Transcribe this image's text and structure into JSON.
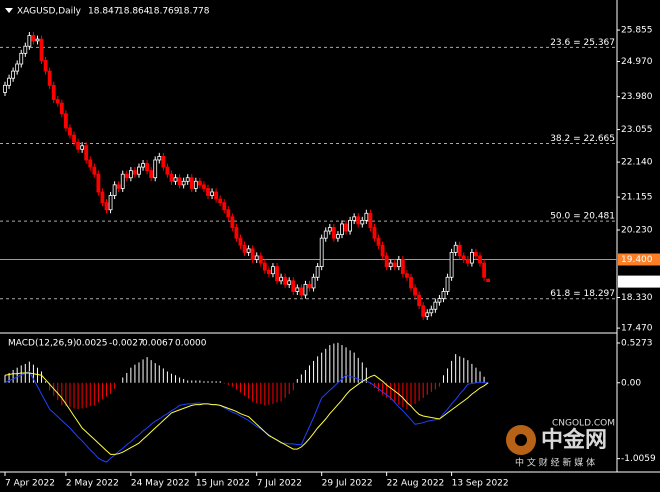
{
  "chart_data": [
    {
      "type": "candlestick",
      "symbol": "XAGUSD,Daily",
      "up_color": "#ffffff",
      "down_color": "#ff0000",
      "hline": {
        "value": 19.4,
        "label": "19.400",
        "color": "#ff7f27"
      },
      "ylim": [
        17.36,
        26.56
      ],
      "yticks": [
        25.855,
        {
          "value": 24.97,
          "label": "24.970"
        },
        {
          "value": 23.98,
          "label": "23.980"
        },
        23.055,
        {
          "value": 22.14,
          "label": "22.140"
        },
        21.155,
        {
          "value": 20.23,
          "label": "20.230"
        },
        {
          "value": 18.33,
          "label": "18.330"
        },
        {
          "value": 17.47,
          "label": "17.470"
        }
      ],
      "xticks": [
        {
          "value": 0,
          "label": "7 Apr 2022"
        },
        {
          "value": 15,
          "label": "2 May 2022"
        },
        {
          "value": 31,
          "label": "24 May 2022"
        },
        {
          "value": 47,
          "label": "15 Jun 2022"
        },
        {
          "value": 62,
          "label": "7 Jul 2022"
        },
        {
          "value": 78,
          "label": "29 Jul 2022"
        },
        {
          "value": 94,
          "label": "22 Aug 2022"
        },
        {
          "value": 110,
          "label": "13 Sep 2022"
        }
      ],
      "fibonacci": [
        {
          "value": 25.367,
          "label": "23.6 = 25.367"
        },
        {
          "value": 22.665,
          "label": "38.2 = 22.665"
        },
        {
          "value": 20.481,
          "label": "50.0 = 20.481"
        },
        {
          "value": 18.297,
          "label": "61.8 = 18.297"
        }
      ],
      "candles": [
        [
          24.1,
          24.4,
          24.0,
          24.3
        ],
        [
          24.3,
          24.6,
          24.2,
          24.5
        ],
        [
          24.5,
          24.8,
          24.4,
          24.7
        ],
        [
          24.7,
          25.0,
          24.6,
          24.9
        ],
        [
          24.9,
          25.3,
          24.8,
          25.2
        ],
        [
          25.2,
          25.5,
          25.1,
          25.4
        ],
        [
          25.4,
          25.8,
          25.3,
          25.7
        ],
        [
          25.7,
          25.8,
          25.45,
          25.55
        ],
        [
          25.55,
          25.7,
          25.45,
          25.6
        ],
        [
          25.6,
          25.7,
          24.9,
          25.0
        ],
        [
          25.0,
          25.1,
          24.6,
          24.7
        ],
        [
          24.7,
          24.8,
          24.2,
          24.3
        ],
        [
          24.3,
          24.4,
          23.8,
          23.9
        ],
        [
          23.9,
          24.0,
          23.7,
          23.8
        ],
        [
          23.8,
          23.9,
          23.4,
          23.5
        ],
        [
          23.5,
          23.6,
          23.0,
          23.1
        ],
        [
          23.1,
          23.2,
          22.8,
          22.9
        ],
        [
          22.9,
          23.0,
          22.6,
          22.7
        ],
        [
          22.7,
          22.8,
          22.4,
          22.5
        ],
        [
          22.5,
          22.7,
          22.4,
          22.6
        ],
        [
          22.6,
          22.7,
          22.1,
          22.2
        ],
        [
          22.2,
          22.3,
          21.9,
          22.0
        ],
        [
          22.0,
          22.1,
          21.7,
          21.8
        ],
        [
          21.8,
          21.9,
          21.2,
          21.3
        ],
        [
          21.3,
          21.4,
          20.9,
          21.0
        ],
        [
          21.0,
          21.1,
          20.7,
          20.8
        ],
        [
          20.8,
          21.3,
          20.7,
          21.2
        ],
        [
          21.2,
          21.6,
          21.1,
          21.5
        ],
        [
          21.5,
          21.6,
          21.3,
          21.4
        ],
        [
          21.4,
          21.9,
          21.3,
          21.8
        ],
        [
          21.8,
          21.9,
          21.6,
          21.7
        ],
        [
          21.7,
          22.0,
          21.6,
          21.9
        ],
        [
          21.9,
          22.0,
          21.7,
          21.8
        ],
        [
          21.8,
          22.1,
          21.7,
          22.0
        ],
        [
          22.0,
          22.2,
          21.9,
          22.1
        ],
        [
          22.1,
          22.2,
          21.8,
          21.9
        ],
        [
          21.9,
          22.0,
          21.6,
          21.7
        ],
        [
          21.7,
          22.3,
          21.6,
          22.2
        ],
        [
          22.2,
          22.4,
          22.1,
          22.3
        ],
        [
          22.3,
          22.4,
          21.9,
          22.0
        ],
        [
          22.0,
          22.1,
          21.7,
          21.8
        ],
        [
          21.8,
          21.9,
          21.5,
          21.6
        ],
        [
          21.6,
          21.8,
          21.5,
          21.7
        ],
        [
          21.7,
          21.8,
          21.4,
          21.5
        ],
        [
          21.5,
          21.7,
          21.4,
          21.6
        ],
        [
          21.6,
          21.8,
          21.5,
          21.7
        ],
        [
          21.7,
          21.8,
          21.3,
          21.4
        ],
        [
          21.4,
          21.7,
          21.3,
          21.6
        ],
        [
          21.6,
          21.7,
          21.4,
          21.5
        ],
        [
          21.5,
          21.6,
          21.3,
          21.4
        ],
        [
          21.4,
          21.5,
          21.1,
          21.2
        ],
        [
          21.2,
          21.4,
          21.1,
          21.3
        ],
        [
          21.3,
          21.4,
          21.0,
          21.1
        ],
        [
          21.1,
          21.2,
          20.9,
          21.0
        ],
        [
          21.0,
          21.1,
          20.7,
          20.8
        ],
        [
          20.8,
          20.9,
          20.5,
          20.6
        ],
        [
          20.6,
          20.7,
          20.2,
          20.3
        ],
        [
          20.3,
          20.4,
          19.9,
          20.0
        ],
        [
          20.0,
          20.1,
          19.7,
          19.8
        ],
        [
          19.8,
          19.9,
          19.5,
          19.6
        ],
        [
          19.6,
          19.8,
          19.5,
          19.7
        ],
        [
          19.7,
          19.8,
          19.3,
          19.4
        ],
        [
          19.4,
          19.6,
          19.3,
          19.5
        ],
        [
          19.5,
          19.6,
          19.2,
          19.3
        ],
        [
          19.3,
          19.4,
          19.0,
          19.1
        ],
        [
          19.1,
          19.2,
          18.9,
          19.0
        ],
        [
          19.0,
          19.3,
          18.9,
          19.2
        ],
        [
          19.2,
          19.3,
          18.7,
          18.8
        ],
        [
          18.8,
          19.0,
          18.7,
          18.9
        ],
        [
          18.9,
          19.0,
          18.6,
          18.7
        ],
        [
          18.7,
          18.9,
          18.6,
          18.8
        ],
        [
          18.8,
          18.9,
          18.4,
          18.5
        ],
        [
          18.5,
          18.7,
          18.4,
          18.6
        ],
        [
          18.6,
          18.7,
          18.3,
          18.4
        ],
        [
          18.4,
          18.8,
          18.3,
          18.7
        ],
        [
          18.7,
          18.8,
          18.5,
          18.6
        ],
        [
          18.6,
          19.0,
          18.5,
          18.9
        ],
        [
          18.9,
          19.3,
          18.8,
          19.2
        ],
        [
          19.2,
          20.1,
          19.1,
          20.0
        ],
        [
          20.0,
          20.3,
          19.9,
          20.2
        ],
        [
          20.2,
          20.4,
          20.1,
          20.3
        ],
        [
          20.3,
          20.4,
          19.9,
          20.0
        ],
        [
          20.0,
          20.2,
          19.9,
          20.1
        ],
        [
          20.1,
          20.5,
          20.0,
          20.4
        ],
        [
          20.4,
          20.5,
          20.1,
          20.2
        ],
        [
          20.2,
          20.6,
          20.1,
          20.5
        ],
        [
          20.5,
          20.7,
          20.4,
          20.6
        ],
        [
          20.6,
          20.7,
          20.3,
          20.4
        ],
        [
          20.4,
          20.6,
          20.3,
          20.5
        ],
        [
          20.5,
          20.8,
          20.4,
          20.7
        ],
        [
          20.7,
          20.8,
          20.2,
          20.3
        ],
        [
          20.3,
          20.4,
          19.9,
          20.0
        ],
        [
          20.0,
          20.1,
          19.7,
          19.8
        ],
        [
          19.8,
          19.9,
          19.4,
          19.5
        ],
        [
          19.5,
          19.6,
          19.1,
          19.2
        ],
        [
          19.2,
          19.4,
          19.1,
          19.3
        ],
        [
          19.3,
          19.4,
          19.1,
          19.2
        ],
        [
          19.2,
          19.5,
          19.1,
          19.4
        ],
        [
          19.4,
          19.5,
          18.9,
          19.0
        ],
        [
          19.0,
          19.1,
          18.8,
          18.9
        ],
        [
          18.9,
          19.0,
          18.5,
          18.6
        ],
        [
          18.6,
          18.7,
          18.3,
          18.4
        ],
        [
          18.4,
          18.5,
          18.0,
          18.1
        ],
        [
          18.1,
          18.2,
          17.7,
          17.8
        ],
        [
          17.8,
          18.0,
          17.7,
          17.9
        ],
        [
          17.9,
          18.1,
          17.8,
          18.0
        ],
        [
          18.0,
          18.3,
          17.9,
          18.2
        ],
        [
          18.2,
          18.4,
          18.1,
          18.3
        ],
        [
          18.3,
          18.6,
          18.2,
          18.5
        ],
        [
          18.5,
          19.0,
          18.4,
          18.9
        ],
        [
          18.9,
          19.7,
          18.8,
          19.6
        ],
        [
          19.6,
          19.9,
          19.5,
          19.8
        ],
        [
          19.8,
          19.9,
          19.4,
          19.5
        ],
        [
          19.5,
          19.6,
          19.3,
          19.4
        ],
        [
          19.4,
          19.5,
          19.2,
          19.3
        ],
        [
          19.3,
          19.7,
          19.2,
          19.6
        ],
        [
          19.6,
          19.7,
          19.4,
          19.5
        ],
        [
          19.5,
          19.6,
          19.2,
          19.3
        ],
        [
          19.3,
          19.4,
          18.8,
          18.9
        ],
        [
          18.847,
          18.864,
          18.769,
          18.778
        ]
      ]
    },
    {
      "type": "macd",
      "title": "MACD(12,26,9)",
      "readouts": [
        0.0025,
        -0.0027,
        0.0067,
        {
          "value": 0,
          "label": "0.0000"
        }
      ],
      "ylim": [
        -1.13,
        0.62
      ],
      "yticks": [
        0.5273,
        {
          "value": 0,
          "label": "0.00"
        },
        -1.0059
      ],
      "histogram": {
        "up_color": "#ffffff",
        "down_color": "#ff0000",
        "values": [
          0.1,
          0.13,
          0.17,
          0.2,
          0.23,
          0.25,
          0.28,
          0.24,
          0.2,
          0.15,
          0.02,
          -0.1,
          -0.17,
          -0.23,
          -0.3,
          -0.31,
          -0.32,
          -0.34,
          -0.35,
          -0.34,
          -0.33,
          -0.31,
          -0.3,
          -0.26,
          -0.22,
          -0.18,
          -0.15,
          -0.08,
          0.0,
          0.07,
          0.13,
          0.2,
          0.24,
          0.27,
          0.31,
          0.34,
          0.3,
          0.26,
          0.23,
          0.19,
          0.15,
          0.12,
          0.1,
          0.07,
          0.05,
          0.03,
          0.03,
          0.03,
          0.03,
          0.02,
          0.02,
          0.02,
          0.02,
          0.02,
          -0.01,
          -0.03,
          -0.05,
          -0.09,
          -0.13,
          -0.17,
          -0.21,
          -0.25,
          -0.27,
          -0.28,
          -0.3,
          -0.29,
          -0.28,
          -0.26,
          -0.25,
          -0.2,
          -0.15,
          -0.1,
          0.05,
          0.11,
          0.17,
          0.23,
          0.29,
          0.35,
          0.4,
          0.45,
          0.5,
          0.52,
          0.53,
          0.5,
          0.47,
          0.43,
          0.4,
          0.33,
          0.27,
          0.2,
          -0.02,
          -0.07,
          -0.11,
          -0.16,
          -0.2,
          -0.23,
          -0.26,
          -0.29,
          -0.32,
          -0.35,
          -0.31,
          -0.28,
          -0.24,
          -0.2,
          -0.16,
          -0.12,
          -0.09,
          -0.05,
          0.1,
          0.19,
          0.29,
          0.38,
          0.35,
          0.33,
          0.3,
          0.25,
          0.2,
          0.15,
          0.08,
          0.0025
        ]
      },
      "series": [
        {
          "color": "#2040ff",
          "values": [
            0.0,
            0.03,
            0.05,
            0.08,
            0.1,
            0.13,
            0.15,
            0.05,
            -0.05,
            -0.15,
            -0.25,
            -0.35,
            -0.4,
            -0.45,
            -0.5,
            -0.55,
            -0.6,
            -0.66,
            -0.72,
            -0.77,
            -0.83,
            -0.89,
            -0.94,
            -1.0,
            -1.03,
            -1.05,
            -1.0,
            -0.96,
            -0.91,
            -0.87,
            -0.82,
            -0.78,
            -0.73,
            -0.69,
            -0.64,
            -0.6,
            -0.55,
            -0.51,
            -0.48,
            -0.44,
            -0.41,
            -0.37,
            -0.34,
            -0.3,
            -0.29,
            -0.28,
            -0.28,
            -0.27,
            -0.27,
            -0.28,
            -0.28,
            -0.29,
            -0.29,
            -0.3,
            -0.33,
            -0.36,
            -0.39,
            -0.41,
            -0.44,
            -0.47,
            -0.5,
            -0.54,
            -0.58,
            -0.61,
            -0.65,
            -0.69,
            -0.73,
            -0.76,
            -0.8,
            -0.8,
            -0.81,
            -0.81,
            -0.82,
            -0.82,
            -0.7,
            -0.58,
            -0.46,
            -0.33,
            -0.2,
            -0.15,
            -0.1,
            -0.05,
            0.0,
            0.05,
            0.1,
            0.08,
            0.07,
            0.05,
            0.03,
            0.02,
            0.0,
            -0.04,
            -0.08,
            -0.12,
            -0.16,
            -0.2,
            -0.26,
            -0.32,
            -0.37,
            -0.43,
            -0.49,
            -0.55,
            -0.54,
            -0.53,
            -0.51,
            -0.5,
            -0.49,
            -0.48,
            -0.41,
            -0.35,
            -0.28,
            -0.22,
            -0.15,
            -0.09,
            -0.02,
            -0.01,
            0.0,
            0.01,
            0.0,
            0.0
          ]
        },
        {
          "color": "#ffff40",
          "values": [
            0.1,
            0.11,
            0.12,
            0.12,
            0.13,
            0.13,
            0.13,
            0.12,
            0.11,
            0.1,
            0.04,
            -0.02,
            -0.08,
            -0.14,
            -0.2,
            -0.28,
            -0.36,
            -0.44,
            -0.52,
            -0.6,
            -0.65,
            -0.7,
            -0.75,
            -0.8,
            -0.85,
            -0.9,
            -0.95,
            -0.95,
            -0.94,
            -0.92,
            -0.89,
            -0.86,
            -0.83,
            -0.8,
            -0.75,
            -0.7,
            -0.65,
            -0.6,
            -0.55,
            -0.5,
            -0.45,
            -0.4,
            -0.38,
            -0.36,
            -0.34,
            -0.32,
            -0.3,
            -0.29,
            -0.29,
            -0.28,
            -0.28,
            -0.29,
            -0.29,
            -0.3,
            -0.32,
            -0.34,
            -0.36,
            -0.38,
            -0.41,
            -0.43,
            -0.45,
            -0.5,
            -0.55,
            -0.6,
            -0.65,
            -0.7,
            -0.73,
            -0.76,
            -0.79,
            -0.82,
            -0.85,
            -0.88,
            -0.88,
            -0.85,
            -0.8,
            -0.74,
            -0.67,
            -0.6,
            -0.54,
            -0.48,
            -0.41,
            -0.35,
            -0.29,
            -0.23,
            -0.16,
            -0.1,
            -0.06,
            -0.02,
            0.02,
            0.05,
            0.08,
            0.1,
            0.06,
            0.02,
            -0.03,
            -0.07,
            -0.11,
            -0.15,
            -0.2,
            -0.26,
            -0.31,
            -0.37,
            -0.42,
            -0.44,
            -0.45,
            -0.46,
            -0.47,
            -0.48,
            -0.44,
            -0.4,
            -0.36,
            -0.32,
            -0.28,
            -0.24,
            -0.2,
            -0.15,
            -0.11,
            -0.07,
            -0.04,
            0.0
          ]
        }
      ]
    }
  ],
  "watermark": {
    "brand": "中金网",
    "site": "CNGOLD.COM",
    "tagline": "中 文 财 经 新 媒 体"
  }
}
